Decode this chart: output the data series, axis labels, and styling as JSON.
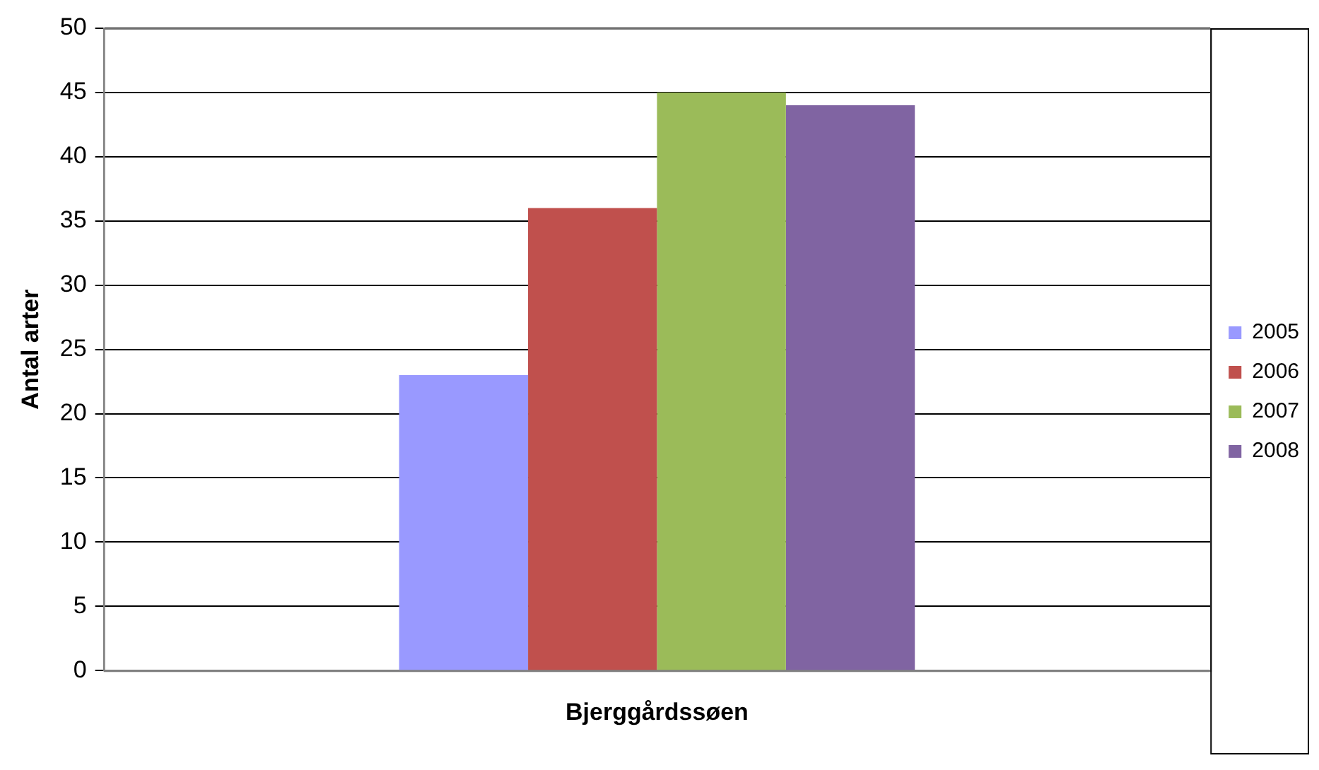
{
  "chart_data": {
    "type": "bar",
    "ylabel": "Antal arter",
    "categories": [
      "Bjerggårdssøen"
    ],
    "series": [
      {
        "name": "2005",
        "color": "#9999ff",
        "values": [
          23
        ]
      },
      {
        "name": "2006",
        "color": "#c0504d",
        "values": [
          36
        ]
      },
      {
        "name": "2007",
        "color": "#9bbb59",
        "values": [
          45
        ]
      },
      {
        "name": "2008",
        "color": "#8064a2",
        "values": [
          44
        ]
      }
    ],
    "ylim": [
      0,
      50
    ],
    "yticks": [
      0,
      5,
      10,
      15,
      20,
      25,
      30,
      35,
      40,
      45,
      50
    ],
    "grid": "y",
    "legend": "right"
  }
}
